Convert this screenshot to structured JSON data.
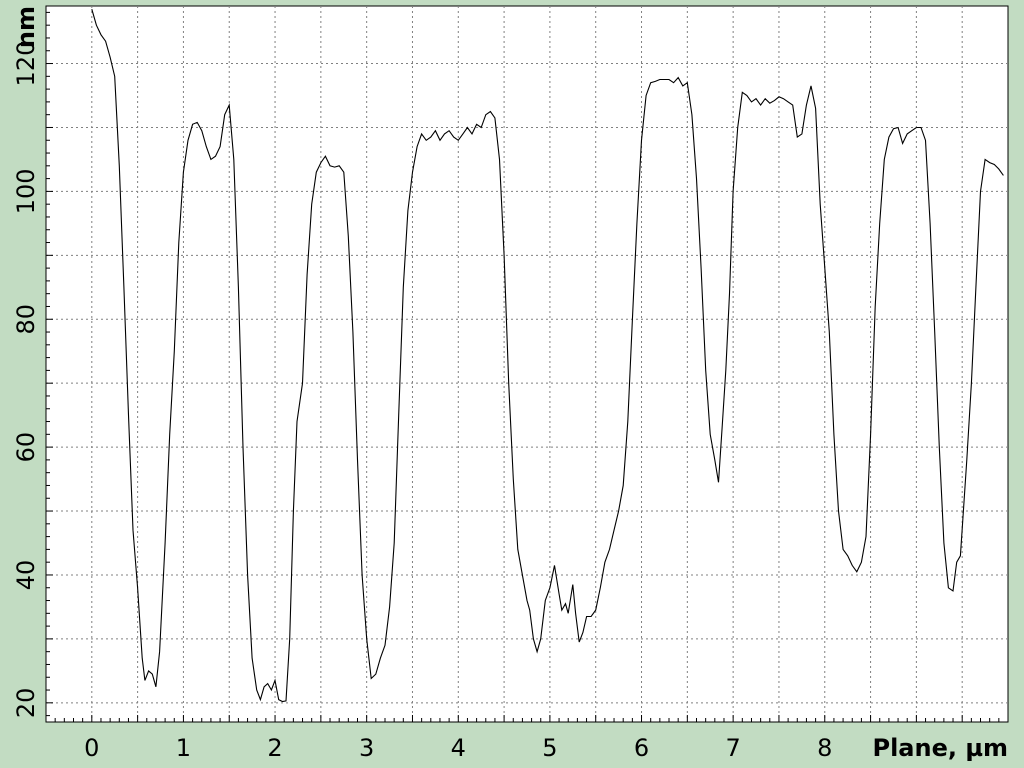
{
  "chart_data": {
    "type": "line",
    "title": "",
    "xlabel": "Plane, µm",
    "ylabel": "nm",
    "xlim": [
      -0.5,
      10.0
    ],
    "ylim": [
      17,
      129
    ],
    "x_ticks": [
      0,
      1,
      2,
      3,
      4,
      5,
      6,
      7,
      8
    ],
    "y_ticks": [
      20,
      40,
      60,
      80,
      100,
      120
    ],
    "grid": true,
    "series": [
      {
        "points": [
          [
            0.0,
            128.5
          ],
          [
            0.05,
            126
          ],
          [
            0.1,
            124.5
          ],
          [
            0.15,
            123.5
          ],
          [
            0.2,
            121
          ],
          [
            0.25,
            118
          ],
          [
            0.3,
            104
          ],
          [
            0.35,
            85
          ],
          [
            0.4,
            65
          ],
          [
            0.45,
            47
          ],
          [
            0.5,
            38
          ],
          [
            0.55,
            27
          ],
          [
            0.58,
            23.5
          ],
          [
            0.62,
            25
          ],
          [
            0.66,
            24.5
          ],
          [
            0.7,
            22.5
          ],
          [
            0.74,
            28
          ],
          [
            0.8,
            45
          ],
          [
            0.85,
            62
          ],
          [
            0.9,
            75
          ],
          [
            0.95,
            92
          ],
          [
            1.0,
            103
          ],
          [
            1.05,
            108
          ],
          [
            1.1,
            110.5
          ],
          [
            1.15,
            110.8
          ],
          [
            1.2,
            109.5
          ],
          [
            1.25,
            107
          ],
          [
            1.3,
            105
          ],
          [
            1.35,
            105.5
          ],
          [
            1.4,
            107
          ],
          [
            1.45,
            112
          ],
          [
            1.5,
            113.5
          ],
          [
            1.55,
            105
          ],
          [
            1.6,
            85
          ],
          [
            1.65,
            60
          ],
          [
            1.7,
            40
          ],
          [
            1.75,
            27
          ],
          [
            1.8,
            22
          ],
          [
            1.84,
            20.5
          ],
          [
            1.88,
            22.5
          ],
          [
            1.92,
            23
          ],
          [
            1.96,
            22
          ],
          [
            2.0,
            23.5
          ],
          [
            2.04,
            20.5
          ],
          [
            2.08,
            20.2
          ],
          [
            2.12,
            20.3
          ],
          [
            2.16,
            30
          ],
          [
            2.2,
            50
          ],
          [
            2.24,
            64
          ],
          [
            2.3,
            70
          ],
          [
            2.35,
            87
          ],
          [
            2.4,
            98
          ],
          [
            2.45,
            103
          ],
          [
            2.5,
            104.5
          ],
          [
            2.55,
            105.5
          ],
          [
            2.6,
            104
          ],
          [
            2.65,
            103.8
          ],
          [
            2.7,
            104
          ],
          [
            2.75,
            103
          ],
          [
            2.8,
            93
          ],
          [
            2.85,
            78
          ],
          [
            2.9,
            58
          ],
          [
            2.95,
            40
          ],
          [
            3.0,
            30
          ],
          [
            3.05,
            23.8
          ],
          [
            3.1,
            24.5
          ],
          [
            3.15,
            27
          ],
          [
            3.2,
            29
          ],
          [
            3.25,
            35
          ],
          [
            3.3,
            45
          ],
          [
            3.35,
            65
          ],
          [
            3.4,
            85
          ],
          [
            3.45,
            97
          ],
          [
            3.5,
            103
          ],
          [
            3.55,
            107
          ],
          [
            3.6,
            109
          ],
          [
            3.65,
            108
          ],
          [
            3.7,
            108.5
          ],
          [
            3.75,
            109.5
          ],
          [
            3.8,
            108
          ],
          [
            3.85,
            109
          ],
          [
            3.9,
            109.5
          ],
          [
            3.95,
            108.5
          ],
          [
            4.0,
            108
          ],
          [
            4.05,
            109
          ],
          [
            4.1,
            110
          ],
          [
            4.15,
            109
          ],
          [
            4.2,
            110.5
          ],
          [
            4.25,
            110
          ],
          [
            4.3,
            112
          ],
          [
            4.35,
            112.5
          ],
          [
            4.4,
            111.5
          ],
          [
            4.45,
            105
          ],
          [
            4.5,
            90
          ],
          [
            4.55,
            70
          ],
          [
            4.6,
            55
          ],
          [
            4.65,
            44
          ],
          [
            4.7,
            40
          ],
          [
            4.75,
            36
          ],
          [
            4.78,
            34.5
          ],
          [
            4.82,
            30
          ],
          [
            4.86,
            28
          ],
          [
            4.9,
            30
          ],
          [
            4.95,
            36
          ],
          [
            5.0,
            38
          ],
          [
            5.05,
            41.5
          ],
          [
            5.1,
            37
          ],
          [
            5.13,
            34.5
          ],
          [
            5.17,
            35.5
          ],
          [
            5.2,
            34
          ],
          [
            5.25,
            38.5
          ],
          [
            5.28,
            34
          ],
          [
            5.32,
            29.5
          ],
          [
            5.36,
            31
          ],
          [
            5.4,
            33.5
          ],
          [
            5.45,
            33.5
          ],
          [
            5.5,
            34.5
          ],
          [
            5.55,
            38
          ],
          [
            5.6,
            42
          ],
          [
            5.65,
            44
          ],
          [
            5.7,
            47
          ],
          [
            5.75,
            50
          ],
          [
            5.8,
            54
          ],
          [
            5.85,
            64
          ],
          [
            5.9,
            80
          ],
          [
            5.95,
            95
          ],
          [
            6.0,
            108
          ],
          [
            6.05,
            115
          ],
          [
            6.1,
            117
          ],
          [
            6.15,
            117.2
          ],
          [
            6.2,
            117.5
          ],
          [
            6.3,
            117.5
          ],
          [
            6.35,
            117
          ],
          [
            6.4,
            117.8
          ],
          [
            6.45,
            116.5
          ],
          [
            6.5,
            117
          ],
          [
            6.55,
            112
          ],
          [
            6.6,
            102
          ],
          [
            6.65,
            88
          ],
          [
            6.7,
            72
          ],
          [
            6.75,
            62
          ],
          [
            6.8,
            58
          ],
          [
            6.84,
            54.5
          ],
          [
            6.88,
            63
          ],
          [
            6.92,
            72
          ],
          [
            6.96,
            84
          ],
          [
            7.0,
            100
          ],
          [
            7.05,
            110
          ],
          [
            7.1,
            115.5
          ],
          [
            7.15,
            115
          ],
          [
            7.2,
            114
          ],
          [
            7.25,
            114.5
          ],
          [
            7.3,
            113.5
          ],
          [
            7.35,
            114.5
          ],
          [
            7.4,
            113.8
          ],
          [
            7.45,
            114.2
          ],
          [
            7.5,
            114.8
          ],
          [
            7.55,
            114.5
          ],
          [
            7.6,
            114
          ],
          [
            7.65,
            113.5
          ],
          [
            7.7,
            108.5
          ],
          [
            7.75,
            109
          ],
          [
            7.8,
            113.5
          ],
          [
            7.85,
            116.5
          ],
          [
            7.9,
            113
          ],
          [
            7.95,
            98
          ],
          [
            8.0,
            88
          ],
          [
            8.05,
            78
          ],
          [
            8.1,
            62
          ],
          [
            8.15,
            50
          ],
          [
            8.2,
            44
          ],
          [
            8.25,
            43
          ],
          [
            8.3,
            41.5
          ],
          [
            8.35,
            40.5
          ],
          [
            8.4,
            42
          ],
          [
            8.45,
            46
          ],
          [
            8.5,
            62
          ],
          [
            8.55,
            82
          ],
          [
            8.6,
            95
          ],
          [
            8.65,
            105
          ],
          [
            8.7,
            108.5
          ],
          [
            8.75,
            109.8
          ],
          [
            8.8,
            110
          ],
          [
            8.85,
            107.5
          ],
          [
            8.9,
            109
          ],
          [
            8.95,
            109.5
          ],
          [
            9.0,
            110
          ],
          [
            9.05,
            110
          ],
          [
            9.1,
            108
          ],
          [
            9.15,
            95
          ],
          [
            9.2,
            78
          ],
          [
            9.25,
            60
          ],
          [
            9.3,
            45
          ],
          [
            9.35,
            38
          ],
          [
            9.4,
            37.5
          ],
          [
            9.44,
            42
          ],
          [
            9.48,
            43
          ],
          [
            9.55,
            58
          ],
          [
            9.6,
            70
          ],
          [
            9.65,
            85
          ],
          [
            9.7,
            100
          ],
          [
            9.75,
            105
          ],
          [
            9.8,
            104.5
          ],
          [
            9.85,
            104.2
          ],
          [
            9.9,
            103.5
          ],
          [
            9.95,
            102.5
          ]
        ]
      }
    ]
  }
}
